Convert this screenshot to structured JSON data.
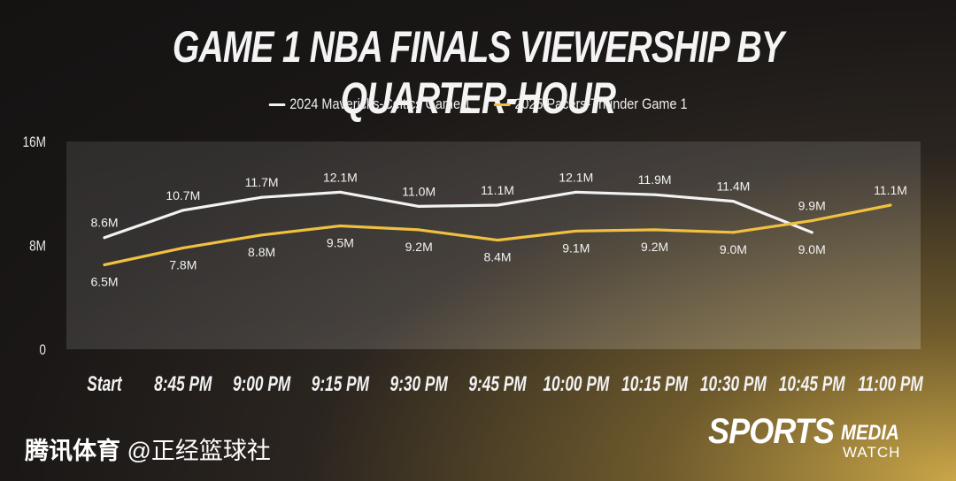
{
  "title": "GAME 1 NBA FINALS VIEWERSHIP BY QUARTER-HOUR",
  "watermark": {
    "brand": "腾讯体育",
    "handle": "@正经篮球社"
  },
  "logo": {
    "sports": "SPORTS",
    "media": "MEDIA",
    "watch": "WATCH"
  },
  "chart_data": {
    "type": "line",
    "title": "GAME 1 NBA FINALS VIEWERSHIP BY QUARTER-HOUR",
    "categories": [
      "Start",
      "8:45 PM",
      "9:00 PM",
      "9:15 PM",
      "9:30 PM",
      "9:45 PM",
      "10:00 PM",
      "10:15 PM",
      "10:30 PM",
      "10:45 PM",
      "11:00 PM"
    ],
    "yticks": [
      "0",
      "8M",
      "16M"
    ],
    "ylim": [
      0,
      16
    ],
    "grid": false,
    "legend": "top-center",
    "series": [
      {
        "name": "2024 Mavericks-Celtics Game 1",
        "color": "#f2f2f2",
        "values": [
          8.6,
          10.7,
          11.7,
          12.1,
          11.0,
          11.1,
          12.1,
          11.9,
          11.4,
          9.0,
          null
        ],
        "labels": [
          "8.6M",
          "10.7M",
          "11.7M",
          "12.1M",
          "11.0M",
          "11.1M",
          "12.1M",
          "11.9M",
          "11.4M",
          "9.0M",
          ""
        ]
      },
      {
        "name": "2025 Pacers-Thunder Game 1",
        "color": "#f0c040",
        "values": [
          6.5,
          7.8,
          8.8,
          9.5,
          9.2,
          8.4,
          9.1,
          9.2,
          9.0,
          9.9,
          11.1
        ],
        "labels": [
          "6.5M",
          "7.8M",
          "8.8M",
          "9.5M",
          "9.2M",
          "8.4M",
          "9.1M",
          "9.2M",
          "9.0M",
          "9.9M",
          "11.1M"
        ]
      }
    ]
  }
}
